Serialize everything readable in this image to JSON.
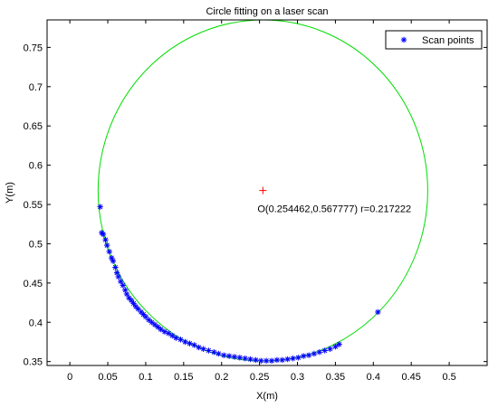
{
  "chart_data": {
    "type": "scatter",
    "title": "Circle fitting on a laser scan",
    "xlabel": "X(m)",
    "ylabel": "Y(m)",
    "xlim": [
      -0.03,
      0.55
    ],
    "ylim": [
      0.345,
      0.785
    ],
    "xticks": [
      0,
      0.05,
      0.1,
      0.15,
      0.2,
      0.25,
      0.3,
      0.35,
      0.4,
      0.45,
      0.5
    ],
    "yticks": [
      0.35,
      0.4,
      0.45,
      0.5,
      0.55,
      0.6,
      0.65,
      0.7,
      0.75
    ],
    "xtick_labels": [
      "0",
      "0.05",
      "0.1",
      "0.15",
      "0.2",
      "0.25",
      "0.3",
      "0.35",
      "0.4",
      "0.45",
      "0.5"
    ],
    "ytick_labels": [
      "0.35",
      "0.4",
      "0.45",
      "0.5",
      "0.55",
      "0.6",
      "0.65",
      "0.7",
      "0.75"
    ],
    "grid": false,
    "legend": {
      "placement": "top-right",
      "entries": [
        "Scan points"
      ]
    },
    "series": [
      {
        "name": "Scan points",
        "marker": "*",
        "color": "#0000ff",
        "points": [
          [
            0.04,
            0.547
          ],
          [
            0.042,
            0.514
          ],
          [
            0.044,
            0.512
          ],
          [
            0.047,
            0.505
          ],
          [
            0.049,
            0.498
          ],
          [
            0.052,
            0.49
          ],
          [
            0.055,
            0.482
          ],
          [
            0.057,
            0.478
          ],
          [
            0.06,
            0.47
          ],
          [
            0.062,
            0.463
          ],
          [
            0.064,
            0.458
          ],
          [
            0.067,
            0.452
          ],
          [
            0.07,
            0.447
          ],
          [
            0.073,
            0.441
          ],
          [
            0.075,
            0.436
          ],
          [
            0.078,
            0.431
          ],
          [
            0.081,
            0.428
          ],
          [
            0.084,
            0.424
          ],
          [
            0.087,
            0.42
          ],
          [
            0.09,
            0.417
          ],
          [
            0.094,
            0.413
          ],
          [
            0.097,
            0.41
          ],
          [
            0.1,
            0.407
          ],
          [
            0.104,
            0.403
          ],
          [
            0.108,
            0.4
          ],
          [
            0.112,
            0.397
          ],
          [
            0.116,
            0.394
          ],
          [
            0.12,
            0.391
          ],
          [
            0.125,
            0.388
          ],
          [
            0.13,
            0.386
          ],
          [
            0.135,
            0.383
          ],
          [
            0.14,
            0.38
          ],
          [
            0.146,
            0.378
          ],
          [
            0.152,
            0.375
          ],
          [
            0.158,
            0.373
          ],
          [
            0.164,
            0.371
          ],
          [
            0.17,
            0.368
          ],
          [
            0.176,
            0.366
          ],
          [
            0.183,
            0.364
          ],
          [
            0.19,
            0.362
          ],
          [
            0.196,
            0.36
          ],
          [
            0.203,
            0.358
          ],
          [
            0.21,
            0.357
          ],
          [
            0.217,
            0.356
          ],
          [
            0.224,
            0.355
          ],
          [
            0.231,
            0.354
          ],
          [
            0.238,
            0.353
          ],
          [
            0.245,
            0.352
          ],
          [
            0.252,
            0.351
          ],
          [
            0.259,
            0.351
          ],
          [
            0.266,
            0.351
          ],
          [
            0.273,
            0.352
          ],
          [
            0.28,
            0.352
          ],
          [
            0.287,
            0.353
          ],
          [
            0.294,
            0.354
          ],
          [
            0.301,
            0.355
          ],
          [
            0.308,
            0.357
          ],
          [
            0.315,
            0.358
          ],
          [
            0.322,
            0.36
          ],
          [
            0.329,
            0.362
          ],
          [
            0.336,
            0.364
          ],
          [
            0.343,
            0.366
          ],
          [
            0.35,
            0.369
          ],
          [
            0.355,
            0.372
          ],
          [
            0.406,
            0.413
          ]
        ]
      },
      {
        "name": "",
        "type": "circle",
        "color": "#00dd00",
        "center": [
          0.254462,
          0.567777
        ],
        "radius": 0.217222
      }
    ],
    "center_marker": {
      "x": 0.254462,
      "y": 0.567777,
      "color": "#ff0000"
    },
    "annotation": "O(0.254462,0.567777) r=0.217222"
  }
}
